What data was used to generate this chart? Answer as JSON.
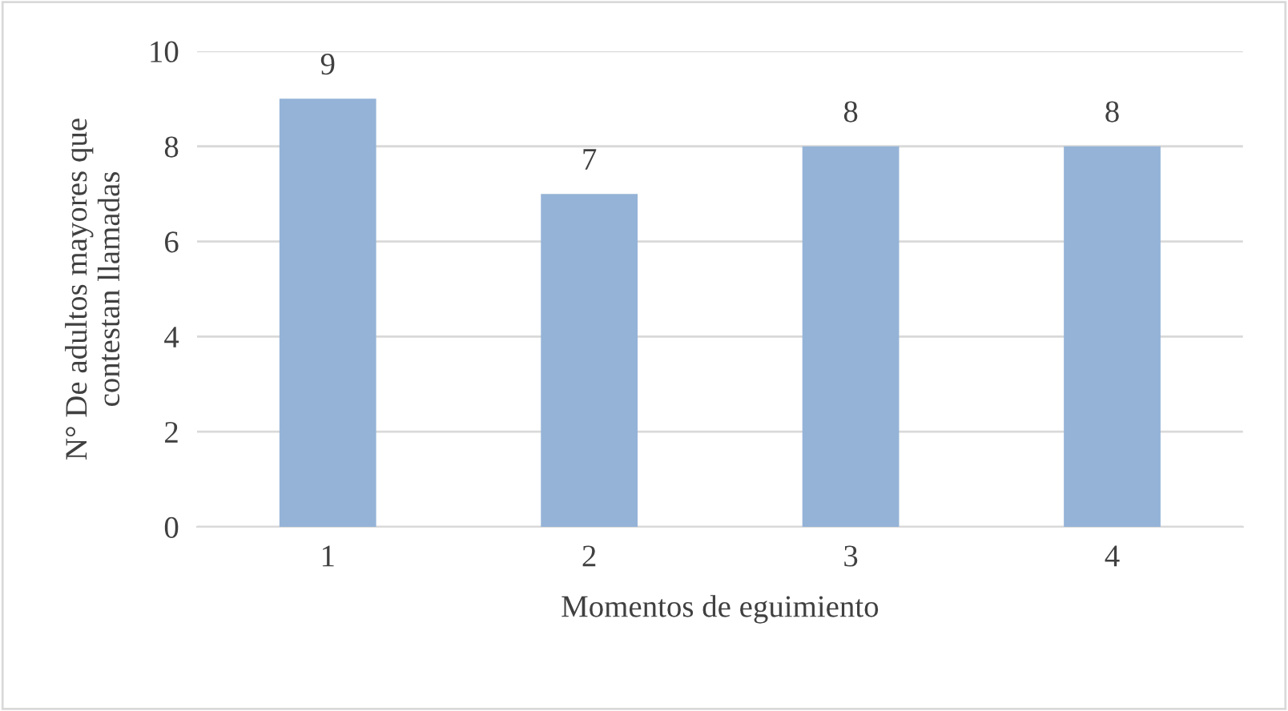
{
  "chart_data": {
    "type": "bar",
    "xlabel": "Momentos de eguimiento",
    "ylabel": "N° De adultos mayores que\ncontestan llamadas",
    "categories": [
      "1",
      "2",
      "3",
      "4"
    ],
    "values": [
      9,
      7,
      8,
      8
    ],
    "color": "#95b3d7",
    "ylim": [
      0,
      10
    ],
    "yticks": [
      0,
      2,
      4,
      6,
      8,
      10
    ],
    "grid": "y",
    "data_labels": true
  }
}
